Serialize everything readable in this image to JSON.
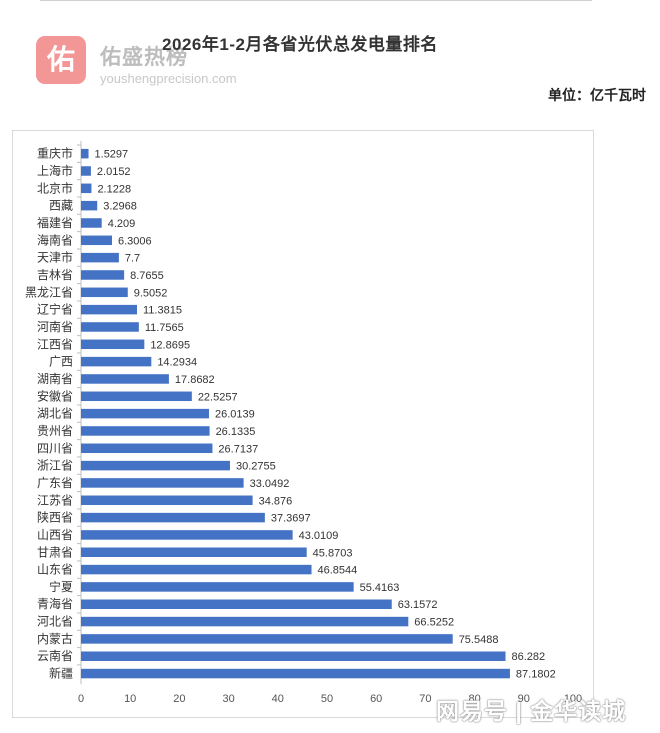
{
  "title": "2026年1-2月各省光伏总发电量排名",
  "unit": "单位：亿千瓦时",
  "watermark": {
    "logo_char": "佑",
    "name": "佑盛热榜",
    "site": "youshengprecision.com",
    "bottom": "网易号 | 金华读城"
  },
  "colors": {
    "bar": "#4472C4",
    "axis": "#bfbfbf",
    "text": "#333333"
  },
  "chart_data": {
    "type": "bar",
    "orientation": "horizontal",
    "title": "2026年1-2月各省光伏总发电量排名",
    "unit": "单位：亿千瓦时",
    "categories": [
      "重庆市",
      "上海市",
      "北京市",
      "西藏",
      "福建省",
      "海南省",
      "天津市",
      "吉林省",
      "黑龙江省",
      "辽宁省",
      "河南省",
      "江西省",
      "广西",
      "湖南省",
      "安徽省",
      "湖北省",
      "贵州省",
      "四川省",
      "浙江省",
      "广东省",
      "江苏省",
      "陕西省",
      "山西省",
      "甘肃省",
      "山东省",
      "宁夏",
      "青海省",
      "河北省",
      "内蒙古",
      "云南省",
      "新疆"
    ],
    "values": [
      1.5297,
      2.0152,
      2.1228,
      3.2968,
      4.209,
      6.3006,
      7.7,
      8.7655,
      9.5052,
      11.3815,
      11.7565,
      12.8695,
      14.2934,
      17.8682,
      22.5257,
      26.0139,
      26.1335,
      26.7137,
      30.2755,
      33.0492,
      34.876,
      37.3697,
      43.0109,
      45.8703,
      46.8544,
      55.4163,
      63.1572,
      66.5252,
      75.5488,
      86.282,
      87.1802
    ],
    "data_labels": [
      "1.5297",
      "2.0152",
      "2.1228",
      "3.2968",
      "4.209",
      "6.3006",
      "7.7",
      "8.7655",
      "9.5052",
      "11.3815",
      "11.7565",
      "12.8695",
      "14.2934",
      "17.8682",
      "22.5257",
      "26.0139",
      "26.1335",
      "26.7137",
      "30.2755",
      "33.0492",
      "34.876",
      "37.3697",
      "43.0109",
      "45.8703",
      "46.8544",
      "55.4163",
      "63.1572",
      "66.5252",
      "75.5488",
      "86.282",
      "87.1802"
    ],
    "x_ticks": [
      "0",
      "10",
      "20",
      "30",
      "40",
      "50",
      "60",
      "70",
      "80",
      "90",
      "100"
    ],
    "xlim": [
      0,
      100
    ],
    "grid": false,
    "legend": "none"
  }
}
